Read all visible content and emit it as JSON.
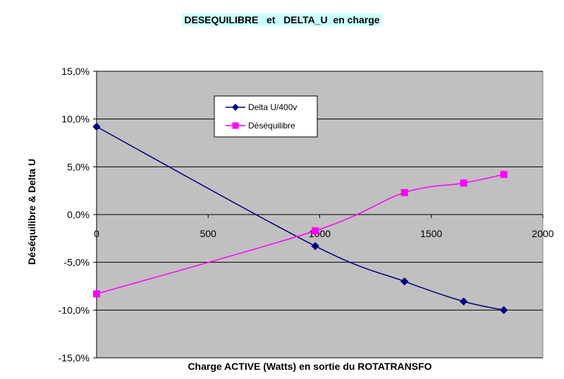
{
  "chart_data": {
    "type": "line",
    "title": "DESEQUILIBRE   et   DELTA_U  en charge",
    "xlabel": "Charge ACTIVE (Watts) en sortie du ROTATRANSFO",
    "ylabel": "Déséquilibre  &  Delta U",
    "xlim": [
      0,
      2000
    ],
    "ylim": [
      -15,
      15
    ],
    "x_ticks": [
      "0",
      "500",
      "1000",
      "1500",
      "2000"
    ],
    "y_ticks": [
      "15,0%",
      "10,0%",
      "5,0%",
      "0,0%",
      "-5,0%",
      "-10,0%",
      "-15,0%"
    ],
    "grid": "horizontal",
    "legend_position": "top-left inside",
    "series": [
      {
        "name": "Delta U/400v",
        "color": "#000080",
        "marker": "diamond",
        "x": [
          0,
          980,
          1380,
          1645,
          1825
        ],
        "y": [
          9.2,
          -3.3,
          -7.0,
          -9.1,
          -10.0
        ]
      },
      {
        "name": "Déséquilibre",
        "color": "#ff00ff",
        "marker": "square",
        "x": [
          0,
          980,
          1380,
          1645,
          1825
        ],
        "y": [
          -8.3,
          -1.7,
          2.3,
          3.3,
          4.2
        ]
      }
    ]
  }
}
